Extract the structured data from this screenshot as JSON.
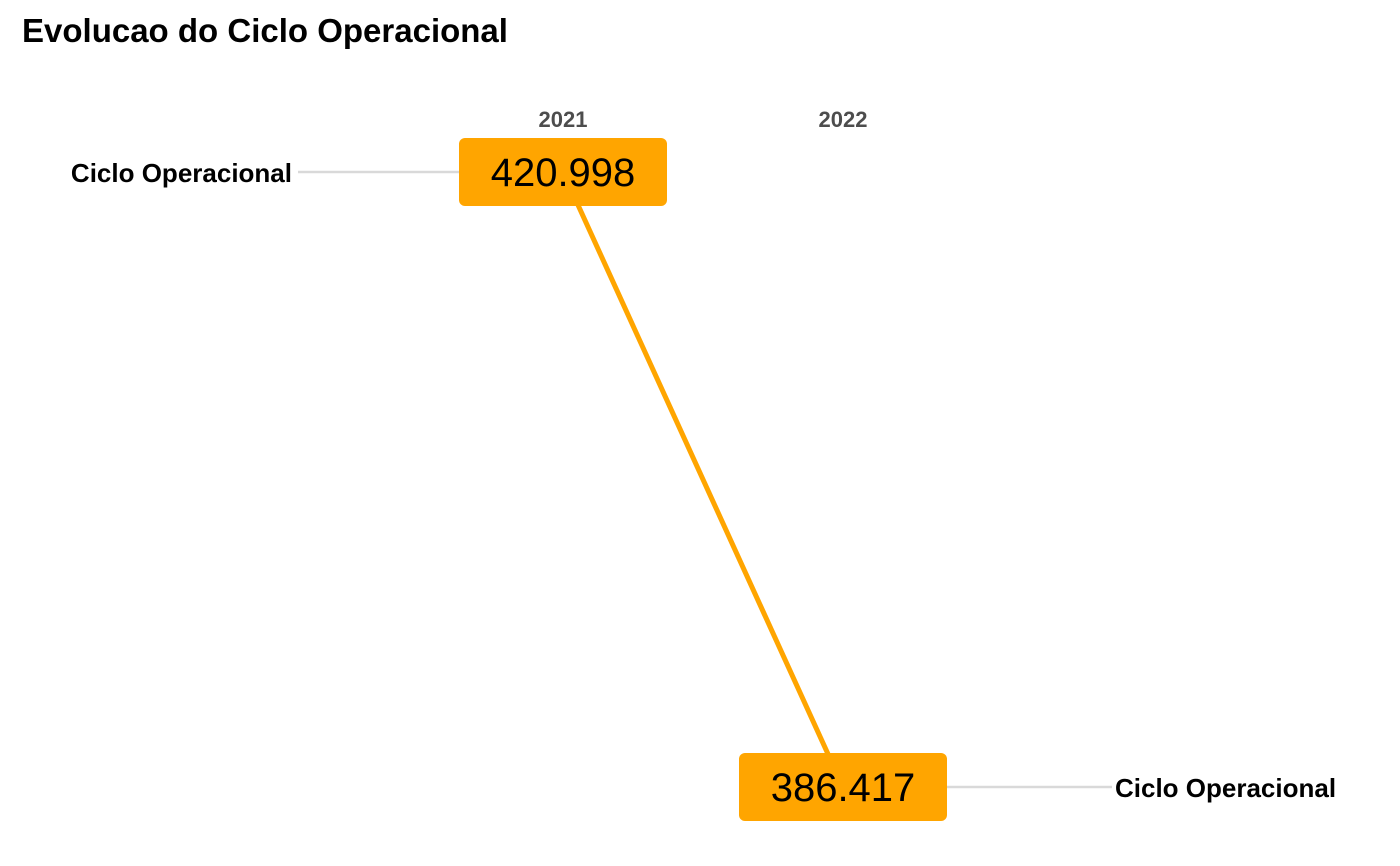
{
  "chart_data": {
    "type": "line",
    "title": "Evolucao do Ciclo Operacional",
    "categories": [
      "2021",
      "2022"
    ],
    "series": [
      {
        "name": "Ciclo Operacional",
        "values": [
          420.998,
          386.417
        ],
        "value_labels": [
          "420.998",
          "386.417"
        ],
        "color": "#FFA500"
      }
    ],
    "left_label": "Ciclo Operacional",
    "right_label": "Ciclo Operacional",
    "grid": false,
    "legend": "none"
  }
}
